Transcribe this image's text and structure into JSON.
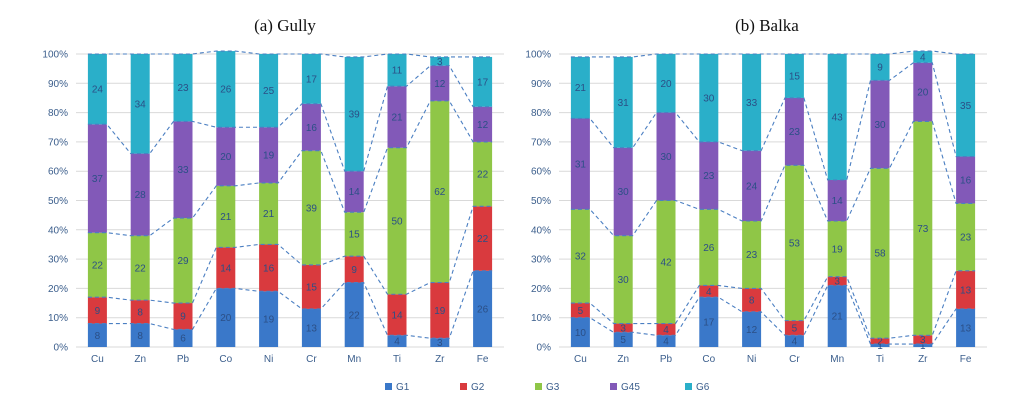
{
  "colors": {
    "G1": "#3a78c9",
    "G2": "#d93a3e",
    "G3": "#8fc647",
    "G45": "#8259b8",
    "G6": "#2aafc9",
    "dashed_line": "#4b7fc2",
    "grid": "#d9d9d9"
  },
  "legend": [
    "G1",
    "G2",
    "G3",
    "G45",
    "G6"
  ],
  "chart_data": [
    {
      "type": "bar",
      "stacked": true,
      "percent": true,
      "title": "(a) Gully",
      "categories": [
        "Cu",
        "Zn",
        "Pb",
        "Co",
        "Ni",
        "Cr",
        "Mn",
        "Ti",
        "Zr",
        "Fe"
      ],
      "ylim": [
        0,
        100
      ],
      "yticks": [
        "0%",
        "10%",
        "20%",
        "30%",
        "40%",
        "50%",
        "60%",
        "70%",
        "80%",
        "90%",
        "100%"
      ],
      "grid": true,
      "legend_position": "bottom",
      "series": [
        {
          "name": "G1",
          "values": [
            8,
            8,
            6,
            20,
            19,
            13,
            22,
            4,
            3,
            26
          ]
        },
        {
          "name": "G2",
          "values": [
            9,
            8,
            9,
            14,
            16,
            15,
            9,
            14,
            19,
            22
          ]
        },
        {
          "name": "G3",
          "values": [
            22,
            22,
            29,
            21,
            21,
            39,
            15,
            50,
            62,
            22
          ]
        },
        {
          "name": "G45",
          "values": [
            37,
            28,
            33,
            20,
            19,
            16,
            14,
            21,
            12,
            12
          ]
        },
        {
          "name": "G6",
          "values": [
            24,
            34,
            23,
            26,
            25,
            17,
            39,
            11,
            3,
            17
          ]
        }
      ]
    },
    {
      "type": "bar",
      "stacked": true,
      "percent": true,
      "title": "(b) Balka",
      "categories": [
        "Cu",
        "Zn",
        "Pb",
        "Co",
        "Ni",
        "Cr",
        "Mn",
        "Ti",
        "Zr",
        "Fe"
      ],
      "ylim": [
        0,
        100
      ],
      "yticks": [
        "0%",
        "10%",
        "20%",
        "30%",
        "40%",
        "50%",
        "60%",
        "70%",
        "80%",
        "90%",
        "100%"
      ],
      "grid": true,
      "legend_position": "bottom",
      "series": [
        {
          "name": "G1",
          "values": [
            10,
            5,
            4,
            17,
            12,
            4,
            21,
            1,
            1,
            13
          ]
        },
        {
          "name": "G2",
          "values": [
            5,
            3,
            4,
            4,
            8,
            5,
            3,
            2,
            3,
            13
          ]
        },
        {
          "name": "G3",
          "values": [
            32,
            30,
            42,
            26,
            23,
            53,
            19,
            58,
            73,
            23
          ]
        },
        {
          "name": "G45",
          "values": [
            31,
            30,
            30,
            23,
            24,
            23,
            14,
            30,
            20,
            16
          ]
        },
        {
          "name": "G6",
          "values": [
            21,
            31,
            20,
            30,
            33,
            15,
            43,
            9,
            4,
            35
          ]
        }
      ]
    }
  ]
}
